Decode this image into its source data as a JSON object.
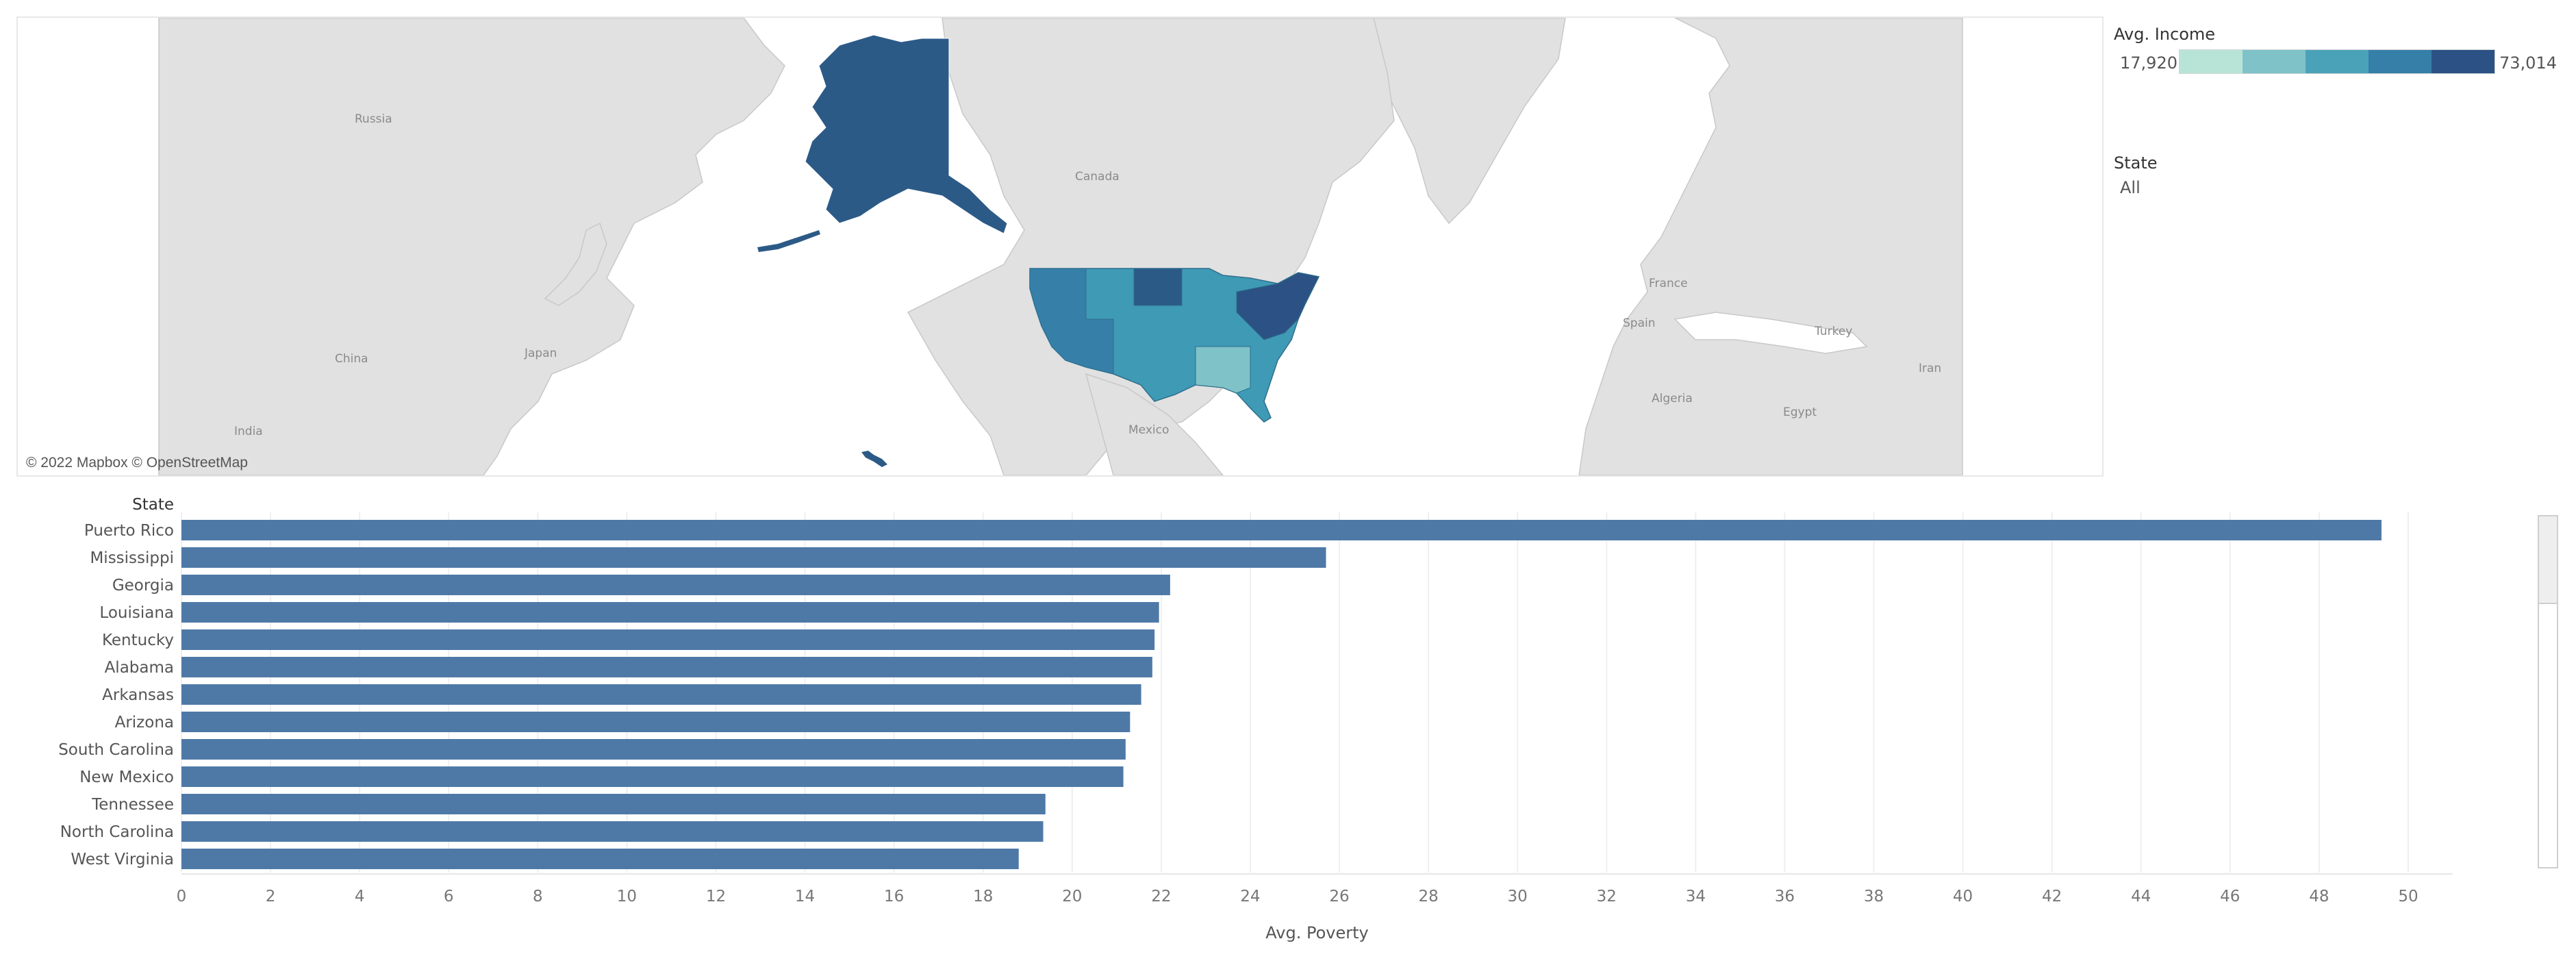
{
  "map": {
    "attribution": "© 2022 Mapbox © OpenStreetMap",
    "country_labels": [
      {
        "name": "Russia"
      },
      {
        "name": "Canada"
      },
      {
        "name": "China"
      },
      {
        "name": "Japan"
      },
      {
        "name": "India"
      },
      {
        "name": "Mexico"
      },
      {
        "name": "France"
      },
      {
        "name": "Spain"
      },
      {
        "name": "Turkey"
      },
      {
        "name": "Iran"
      },
      {
        "name": "Algeria"
      },
      {
        "name": "Egypt"
      }
    ],
    "colors": {
      "land": "#e1e1e1",
      "borders": "#bfbfbf",
      "water": "#ffffff",
      "alaska": "#2c5a87",
      "us_fill": "#3f9ab5"
    }
  },
  "legend": {
    "title": "Avg. Income",
    "min_label": "17,920",
    "max_label": "73,014",
    "colors": [
      "#b8e4d8",
      "#7fc2c8",
      "#4aa2b9",
      "#367fa8",
      "#2c5285"
    ]
  },
  "filter": {
    "title": "State",
    "value": "All"
  },
  "chart_data": {
    "type": "bar",
    "orientation": "horizontal",
    "row_header": "State",
    "categories": [
      "Puerto Rico",
      "Mississippi",
      "Georgia",
      "Louisiana",
      "Kentucky",
      "Alabama",
      "Arkansas",
      "Arizona",
      "South Carolina",
      "New Mexico",
      "Tennessee",
      "North Carolina",
      "West Virginia"
    ],
    "values": [
      49.4,
      25.7,
      22.2,
      21.95,
      21.85,
      21.8,
      21.55,
      21.3,
      21.2,
      21.15,
      19.4,
      19.35,
      18.8
    ],
    "xlabel": "Avg. Poverty",
    "xlim": [
      0,
      51
    ],
    "xticks": [
      0,
      2,
      4,
      6,
      8,
      10,
      12,
      14,
      16,
      18,
      20,
      22,
      24,
      26,
      28,
      30,
      32,
      34,
      36,
      38,
      40,
      42,
      44,
      46,
      48,
      50
    ],
    "grid": true,
    "bar_color": "#4e79a7"
  }
}
